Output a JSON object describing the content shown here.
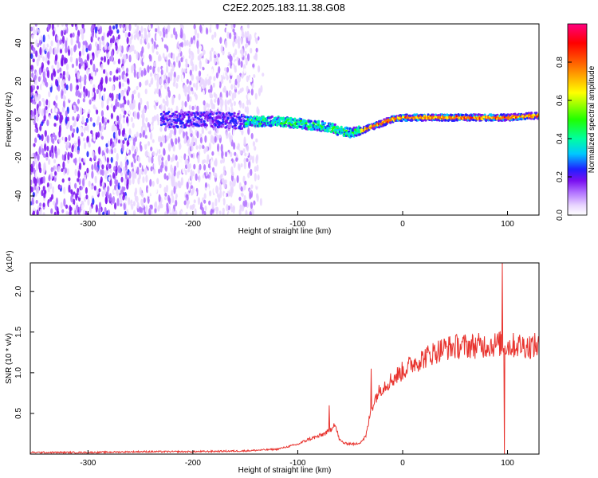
{
  "title": "C2E2.2025.183.11.38.G08",
  "chart_data": [
    {
      "type": "heatmap",
      "xlabel": "Height of straight line (km)",
      "ylabel": "Frequency (Hz)",
      "xlim": [
        -355,
        130
      ],
      "ylim": [
        -50,
        50
      ],
      "xticks": [
        -300,
        -200,
        -100,
        0,
        100
      ],
      "yticks": [
        -40,
        -20,
        0,
        20,
        40
      ],
      "colorbar": {
        "label": "Normalized spectral amplitude",
        "range": [
          0.0,
          1.0
        ],
        "ticks": [
          "0.0",
          "0.2",
          "0.4",
          "0.6",
          "0.8"
        ],
        "tick_values": [
          0.0,
          0.2,
          0.4,
          0.6,
          0.8
        ],
        "colormap": [
          "#ffffff",
          "#e9d6ff",
          "#b070ff",
          "#7a10f0",
          "#2020ff",
          "#00c8ff",
          "#00ffa0",
          "#20ff00",
          "#ffff00",
          "#ff7000",
          "#ff0000",
          "#ff0080"
        ]
      },
      "ridge_frequency": {
        "x": [
          -210,
          -180,
          -150,
          -120,
          -100,
          -85,
          -70,
          -60,
          -50,
          -40,
          -30,
          -20,
          -10,
          0,
          50,
          100,
          125
        ],
        "y": [
          0,
          0,
          -1,
          -1,
          -2,
          -3,
          -4,
          -6,
          -7,
          -6,
          -4,
          -2,
          0,
          1,
          1,
          1,
          2
        ]
      }
    },
    {
      "type": "line",
      "xlabel": "Height of straight line (km)",
      "ylabel": "SNR (10 * v/v)",
      "y_multiplier": "(x10⁴)",
      "xlim": [
        -355,
        130
      ],
      "ylim": [
        0,
        2.35
      ],
      "xticks": [
        -300,
        -200,
        -100,
        0,
        100
      ],
      "yticks": [
        "0.5",
        "1.0",
        "1.5",
        "2.0"
      ],
      "ytick_values": [
        0.5,
        1.0,
        1.5,
        2.0
      ],
      "color": "#e8332e",
      "series": [
        {
          "x": [
            -355,
            -300,
            -250,
            -200,
            -150,
            -120,
            -100,
            -90,
            -80,
            -70,
            -65,
            -60,
            -55,
            -50,
            -45,
            -40,
            -35,
            -30,
            -25,
            -20,
            -10,
            0,
            10,
            20,
            30,
            40,
            50,
            60,
            70,
            80,
            90,
            95,
            100,
            110,
            120,
            130
          ],
          "y": [
            0.02,
            0.02,
            0.03,
            0.03,
            0.04,
            0.06,
            0.12,
            0.18,
            0.22,
            0.28,
            0.38,
            0.17,
            0.13,
            0.13,
            0.12,
            0.15,
            0.22,
            0.55,
            0.72,
            0.82,
            0.92,
            1.02,
            1.12,
            1.18,
            1.25,
            1.3,
            1.32,
            1.33,
            1.33,
            1.34,
            1.35,
            1.36,
            1.33,
            1.34,
            1.33,
            1.33
          ]
        }
      ],
      "spikes": [
        {
          "x": -70,
          "y": 0.6
        },
        {
          "x": -30,
          "y": 1.05
        },
        {
          "x": 95,
          "y": 2.35
        },
        {
          "x": 97,
          "y": 0.0
        },
        {
          "x": 120,
          "y": 1.72
        },
        {
          "x": 120,
          "y": 1.2
        }
      ]
    }
  ]
}
